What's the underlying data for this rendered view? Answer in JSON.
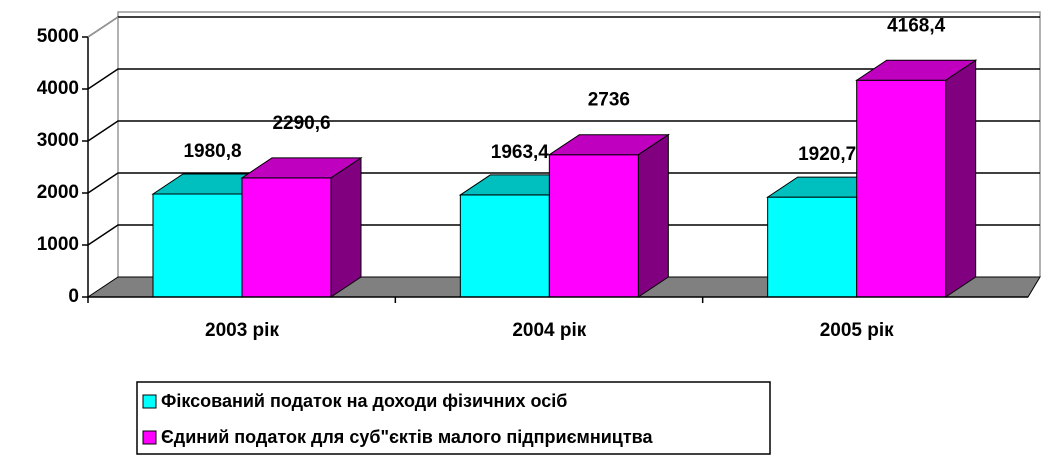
{
  "chart_data": {
    "type": "bar3d",
    "categories": [
      "2003 рік",
      "2004 рік",
      "2005 рік"
    ],
    "series": [
      {
        "name": "Фіксований податок на доходи фізичних осіб",
        "color": "#00ffff",
        "values": [
          1980.8,
          1963.4,
          1920.7
        ],
        "value_labels": [
          "1980,8",
          "1963,4",
          "1920,7"
        ]
      },
      {
        "name": "Єдиний податок для суб\"єктів малого підприємництва",
        "color": "#ff00ff",
        "values": [
          2290.6,
          2736,
          4168.4
        ],
        "value_labels": [
          "2290,6",
          "2736",
          "4168,4"
        ]
      }
    ],
    "ylim": [
      0,
      5000
    ],
    "yticks": [
      0,
      1000,
      2000,
      3000,
      4000,
      5000
    ],
    "grid": true,
    "legend": "bottom"
  }
}
